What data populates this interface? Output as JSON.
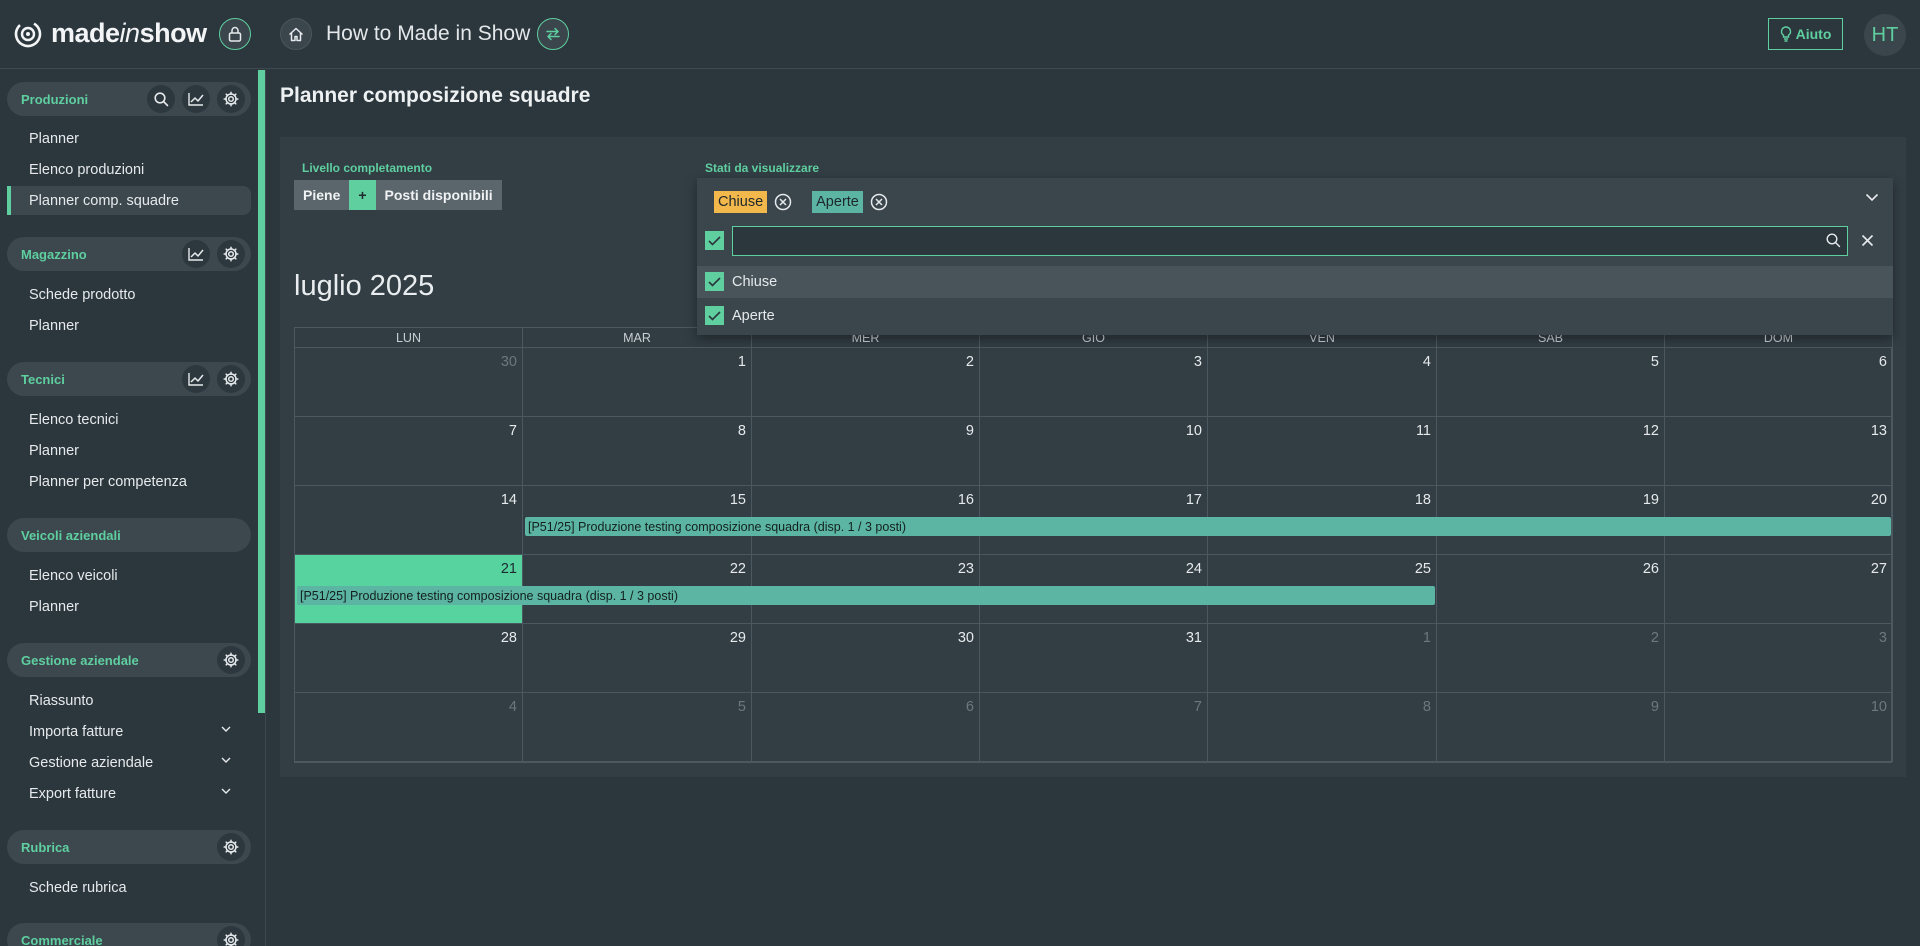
{
  "brand": {
    "name_pre": "made",
    "name_mid": "in",
    "name_post": "show"
  },
  "header": {
    "app_title": "How to Made in Show",
    "help_label": "Aiuto",
    "avatar_initials": "HT"
  },
  "sidebar": {
    "sections": [
      {
        "title": "Produzioni",
        "items": [
          "Planner",
          "Elenco produzioni",
          "Planner comp. squadre"
        ]
      },
      {
        "title": "Magazzino",
        "items": [
          "Schede prodotto",
          "Planner"
        ]
      },
      {
        "title": "Tecnici",
        "items": [
          "Elenco tecnici",
          "Planner",
          "Planner per competenza"
        ]
      },
      {
        "title": "Veicoli aziendali",
        "items": [
          "Elenco veicoli",
          "Planner"
        ]
      },
      {
        "title": "Gestione aziendale",
        "items": [
          "Riassunto",
          "Importa fatture",
          "Gestione aziendale",
          "Export fatture"
        ]
      },
      {
        "title": "Rubrica",
        "items": [
          "Schede rubrica"
        ]
      },
      {
        "title": "Commerciale",
        "items": []
      }
    ],
    "active_item": "Planner comp. squadre"
  },
  "page": {
    "title": "Planner composizione squadre"
  },
  "filters": {
    "completion_label": "Livello completamento",
    "completion_options": [
      "Piene",
      "+",
      "Posti disponibili"
    ],
    "states_label": "Stati da visualizzare",
    "states_selected": [
      {
        "label": "Chiuse",
        "color": "#f2b84b"
      },
      {
        "label": "Aperte",
        "color": "#5bb5a2"
      }
    ],
    "search_value": "",
    "options": [
      {
        "label": "Chiuse",
        "checked": true
      },
      {
        "label": "Aperte",
        "checked": true
      }
    ]
  },
  "calendar": {
    "month_label": "luglio 2025",
    "weekdays": [
      "LUN",
      "MAR",
      "MER",
      "GIO",
      "VEN",
      "SAB",
      "DOM"
    ],
    "weeks": [
      [
        "30",
        "1",
        "2",
        "3",
        "4",
        "5",
        "6"
      ],
      [
        "7",
        "8",
        "9",
        "10",
        "11",
        "12",
        "13"
      ],
      [
        "14",
        "15",
        "16",
        "17",
        "18",
        "19",
        "20"
      ],
      [
        "21",
        "22",
        "23",
        "24",
        "25",
        "26",
        "27"
      ],
      [
        "28",
        "29",
        "30",
        "31",
        "1",
        "2",
        "3"
      ],
      [
        "4",
        "5",
        "6",
        "7",
        "8",
        "9",
        "10"
      ]
    ],
    "events": [
      {
        "label": "[P51/25] Produzione testing composizione squadra (disp. 1 / 3 posti)",
        "start": "2025-07-15",
        "end": "2025-07-20"
      },
      {
        "label": "[P51/25] Produzione testing composizione squadra (disp. 1 / 3 posti)",
        "start": "2025-07-21",
        "end": "2025-07-25"
      }
    ],
    "today": "21"
  },
  "colors": {
    "accent": "#5fcfa0",
    "event": "#5bb5a2",
    "closed_chip": "#f2b84b"
  }
}
